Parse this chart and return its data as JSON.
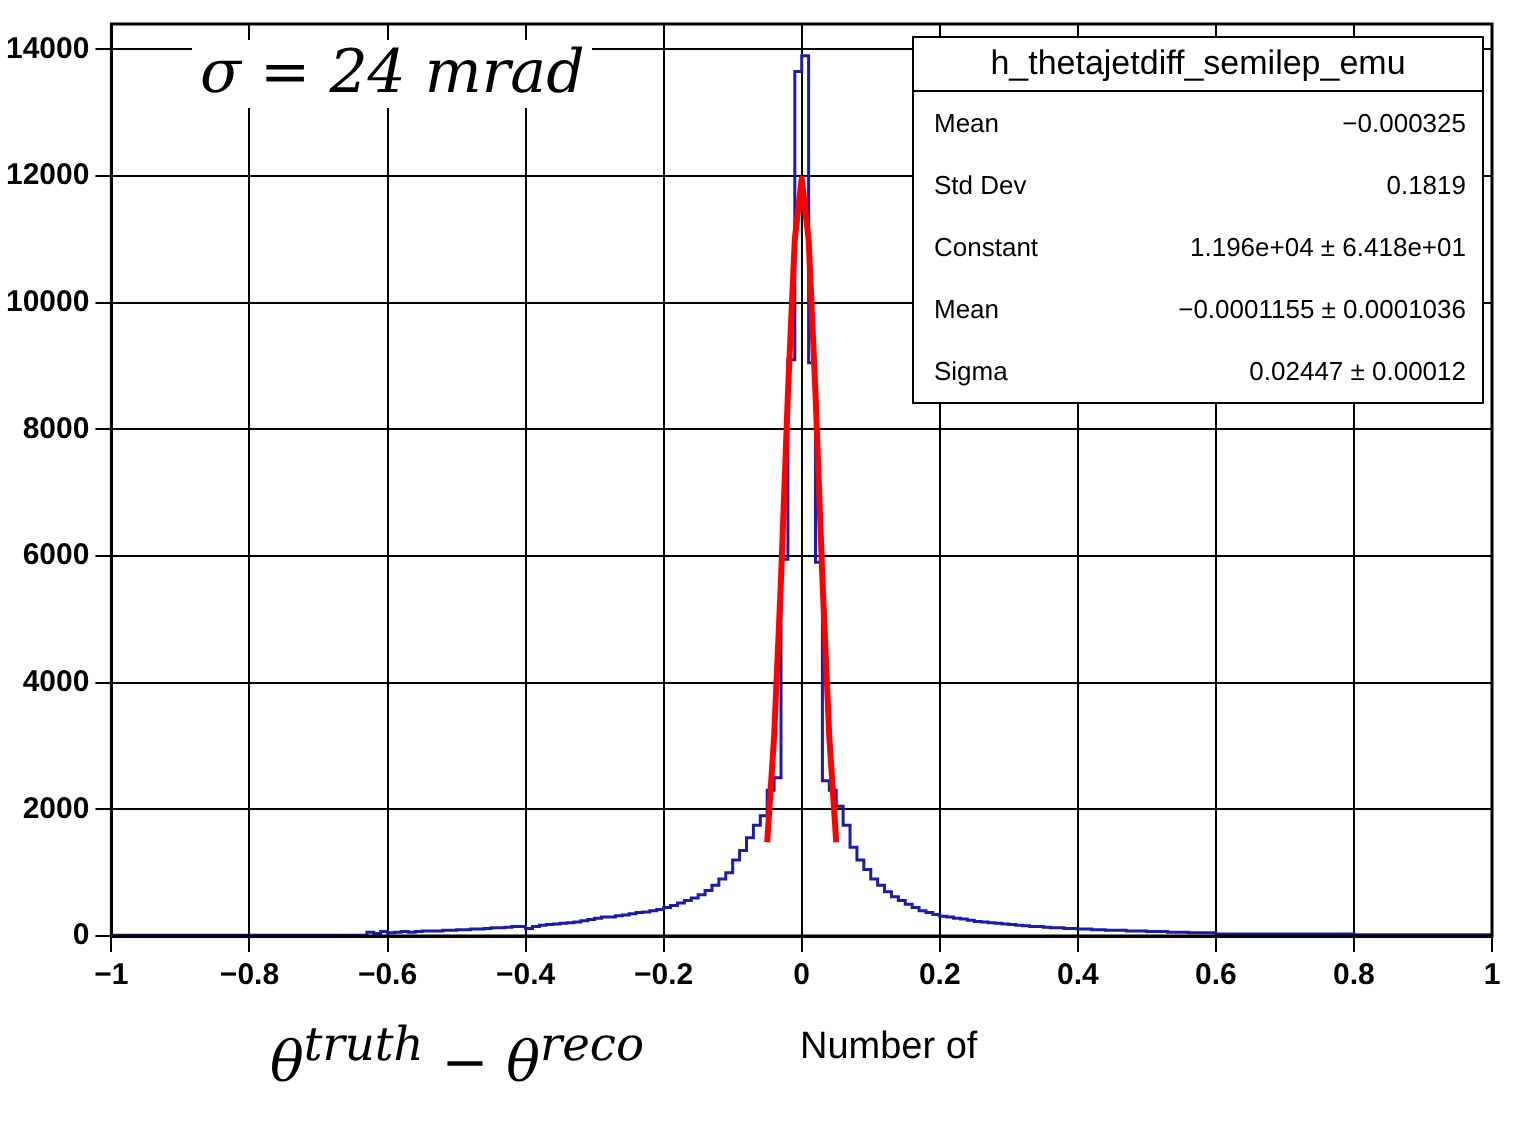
{
  "chart_data": {
    "type": "histogram",
    "xlabel": "θ$^{truth}$ − θ$^{reco}$",
    "bins": [
      -1,
      -0.99,
      -0.98,
      -0.97,
      -0.96,
      -0.95,
      -0.94,
      -0.93,
      -0.92,
      -0.91,
      -0.9,
      -0.89,
      -0.88,
      -0.87,
      -0.86,
      -0.85,
      -0.84,
      -0.83,
      -0.82,
      -0.81,
      -0.8,
      -0.79,
      -0.78,
      -0.77,
      -0.76,
      -0.75,
      -0.74,
      -0.73,
      -0.72,
      -0.71,
      -0.7,
      -0.69,
      -0.68,
      -0.67,
      -0.66,
      -0.65,
      -0.64,
      -0.63,
      -0.62,
      -0.61,
      -0.6,
      -0.59,
      -0.58,
      -0.57,
      -0.56,
      -0.55,
      -0.54,
      -0.53,
      -0.52,
      -0.51,
      -0.5,
      -0.49,
      -0.48,
      -0.47,
      -0.46,
      -0.45,
      -0.44,
      -0.43,
      -0.42,
      -0.41,
      -0.4,
      -0.39,
      -0.38,
      -0.37,
      -0.36,
      -0.35,
      -0.34,
      -0.33,
      -0.32,
      -0.31,
      -0.3,
      -0.29,
      -0.28,
      -0.27,
      -0.26,
      -0.25,
      -0.24,
      -0.23,
      -0.22,
      -0.21,
      -0.2,
      -0.19,
      -0.18,
      -0.17,
      -0.16,
      -0.15,
      -0.14,
      -0.13,
      -0.12,
      -0.11,
      -0.1,
      -0.09,
      -0.08,
      -0.07,
      -0.06,
      -0.05,
      -0.04,
      -0.03,
      -0.02,
      -0.01,
      0,
      0.01,
      0.02,
      0.03,
      0.04,
      0.05,
      0.06,
      0.07,
      0.08,
      0.09,
      0.1,
      0.11,
      0.12,
      0.13,
      0.14,
      0.15,
      0.16,
      0.17,
      0.18,
      0.19,
      0.2,
      0.21,
      0.22,
      0.23,
      0.24,
      0.25,
      0.26,
      0.27,
      0.28,
      0.29,
      0.3,
      0.31,
      0.32,
      0.33,
      0.34,
      0.35,
      0.36,
      0.37,
      0.38,
      0.39,
      0.4,
      0.41,
      0.42,
      0.43,
      0.44,
      0.45,
      0.46,
      0.47,
      0.48,
      0.49,
      0.5,
      0.51,
      0.52,
      0.53,
      0.54,
      0.55,
      0.56,
      0.57,
      0.58,
      0.59,
      0.6,
      0.61,
      0.62,
      0.63,
      0.64,
      0.65,
      0.66,
      0.67,
      0.68,
      0.69,
      0.7,
      0.71,
      0.72,
      0.73,
      0.74,
      0.75,
      0.76,
      0.77,
      0.78,
      0.79,
      0.8,
      0.81,
      0.82,
      0.83,
      0.84,
      0.85,
      0.86,
      0.87,
      0.88,
      0.89,
      0.9,
      0.91,
      0.92,
      0.93,
      0.94,
      0.95,
      0.96,
      0.97,
      0.98,
      0.99,
      1
    ],
    "values": [
      10,
      10,
      10,
      10,
      10,
      10,
      10,
      10,
      10,
      10,
      10,
      10,
      10,
      10,
      10,
      10,
      10,
      10,
      10,
      10,
      10,
      10,
      10,
      10,
      10,
      10,
      10,
      10,
      10,
      10,
      10,
      10,
      10,
      10,
      10,
      10,
      10,
      60,
      40,
      70,
      50,
      60,
      70,
      60,
      70,
      80,
      80,
      80,
      90,
      90,
      100,
      100,
      110,
      110,
      120,
      130,
      130,
      140,
      150,
      150,
      120,
      150,
      170,
      180,
      190,
      200,
      210,
      220,
      240,
      260,
      280,
      300,
      300,
      320,
      330,
      350,
      370,
      380,
      400,
      420,
      450,
      480,
      520,
      560,
      600,
      650,
      720,
      800,
      900,
      1000,
      1200,
      1350,
      1550,
      1750,
      1900,
      2300,
      2500,
      5950,
      9100,
      13650,
      13900,
      9050,
      5900,
      2450,
      2300,
      2050,
      1750,
      1400,
      1200,
      1050,
      900,
      800,
      700,
      620,
      560,
      500,
      450,
      400,
      370,
      340,
      310,
      300,
      280,
      270,
      250,
      230,
      220,
      210,
      200,
      190,
      180,
      170,
      160,
      150,
      150,
      140,
      130,
      130,
      120,
      120,
      110,
      110,
      100,
      100,
      90,
      90,
      90,
      80,
      80,
      80,
      70,
      70,
      70,
      60,
      60,
      60,
      50,
      50,
      50,
      50,
      30,
      30,
      30,
      30,
      30,
      30,
      30,
      30,
      30,
      30,
      30,
      30,
      30,
      30,
      30,
      30,
      30,
      30,
      30,
      30,
      20,
      20,
      20,
      20,
      20,
      20,
      20,
      20,
      20,
      20,
      20,
      20,
      20,
      20,
      20,
      20,
      20,
      20,
      20,
      20
    ],
    "color": "#1c1ca8",
    "series": [
      {
        "type": "line",
        "color": "#ff0000",
        "x": [
          -0.05,
          -0.04,
          -0.03,
          -0.02,
          -0.01,
          0,
          0.01,
          0.02,
          0.03,
          0.04,
          0.05
        ],
        "values": [
          1480,
          3140,
          5630,
          8560,
          11000,
          11960,
          11000,
          8560,
          5630,
          3140,
          1480
        ]
      }
    ],
    "xlim": [
      -1,
      1
    ],
    "ylim": [
      0,
      14400
    ],
    "xticks": [
      {
        "value": -1,
        "label": "−1"
      },
      {
        "value": -0.8,
        "label": "−0.8"
      },
      {
        "value": -0.6,
        "label": "−0.6"
      },
      {
        "value": -0.4,
        "label": "−0.4"
      },
      {
        "value": -0.2,
        "label": "−0.2"
      },
      0,
      0.2,
      0.4,
      0.6,
      0.8,
      1
    ],
    "yticks": [
      0,
      2000,
      4000,
      6000,
      8000,
      10000,
      12000,
      14000
    ],
    "grid": true,
    "legend": false,
    "annotations": [
      "σ = 24 mrad",
      "h_thetajetdiff_semilep_emu",
      "Mean",
      "−0.000325",
      "Std Dev",
      "0.1819",
      "Constant",
      "1.196e+04 ± 6.418e+01",
      "Mean",
      "−0.0001155 ± 0.0001036",
      "Sigma",
      "0.02447 ± 0.00012",
      "Number of"
    ]
  }
}
